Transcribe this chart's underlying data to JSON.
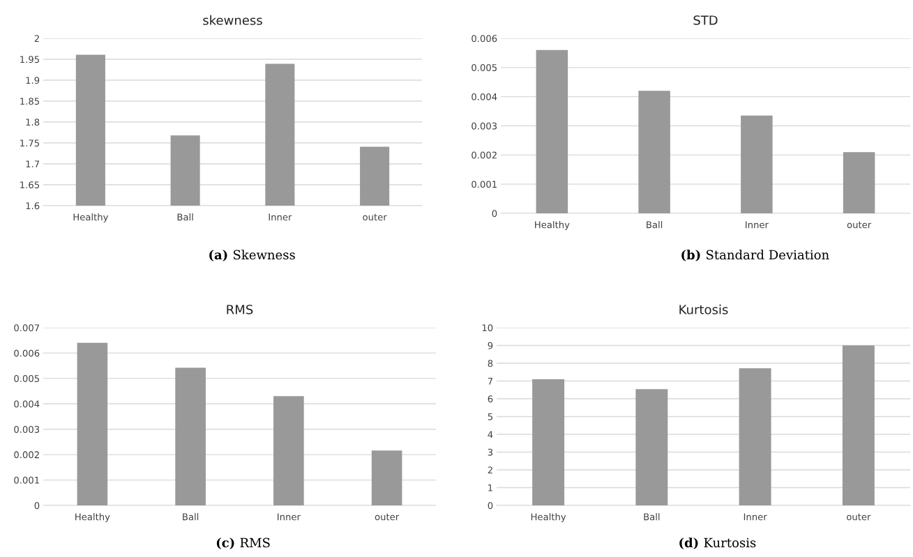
{
  "chart_data": [
    {
      "type": "bar",
      "title": "skewness",
      "categories": [
        "Healthy",
        "Ball",
        "Inner",
        "outer"
      ],
      "values": [
        1.961,
        1.768,
        1.939,
        1.741
      ],
      "color": "#999999",
      "ylim": [
        1.6,
        2
      ],
      "yticks": [
        1.6,
        1.65,
        1.7,
        1.75,
        1.8,
        1.85,
        1.9,
        1.95,
        2
      ],
      "grid": "y",
      "annotations": [
        "(a) Skewness"
      ]
    },
    {
      "type": "bar",
      "title": "STD",
      "categories": [
        "Healthy",
        "Ball",
        "Inner",
        "outer"
      ],
      "values": [
        0.0056,
        0.0042,
        0.00335,
        0.0021
      ],
      "color": "#999999",
      "ylim": [
        0,
        0.006
      ],
      "yticks": [
        0,
        0.001,
        0.002,
        0.003,
        0.004,
        0.005,
        0.006
      ],
      "grid": "y",
      "annotations": [
        "(b) Standard Deviation"
      ]
    },
    {
      "type": "bar",
      "title": "RMS",
      "categories": [
        "Healthy",
        "Ball",
        "Inner",
        "outer"
      ],
      "values": [
        0.0064,
        0.00542,
        0.0043,
        0.00216
      ],
      "color": "#999999",
      "ylim": [
        0,
        0.007
      ],
      "yticks": [
        0,
        0.001,
        0.002,
        0.003,
        0.004,
        0.005,
        0.006,
        0.007
      ],
      "grid": "y",
      "annotations": [
        "(c) RMS"
      ]
    },
    {
      "type": "bar",
      "title": "Kurtosis",
      "categories": [
        "Healthy",
        "Ball",
        "Inner",
        "outer"
      ],
      "values": [
        7.1,
        6.54,
        7.72,
        9.0
      ],
      "color": "#999999",
      "ylim": [
        0,
        10
      ],
      "yticks": [
        0,
        1,
        2,
        3,
        4,
        5,
        6,
        7,
        8,
        9,
        10
      ],
      "grid": "y",
      "annotations": [
        "(d) Kurtosis"
      ]
    }
  ]
}
